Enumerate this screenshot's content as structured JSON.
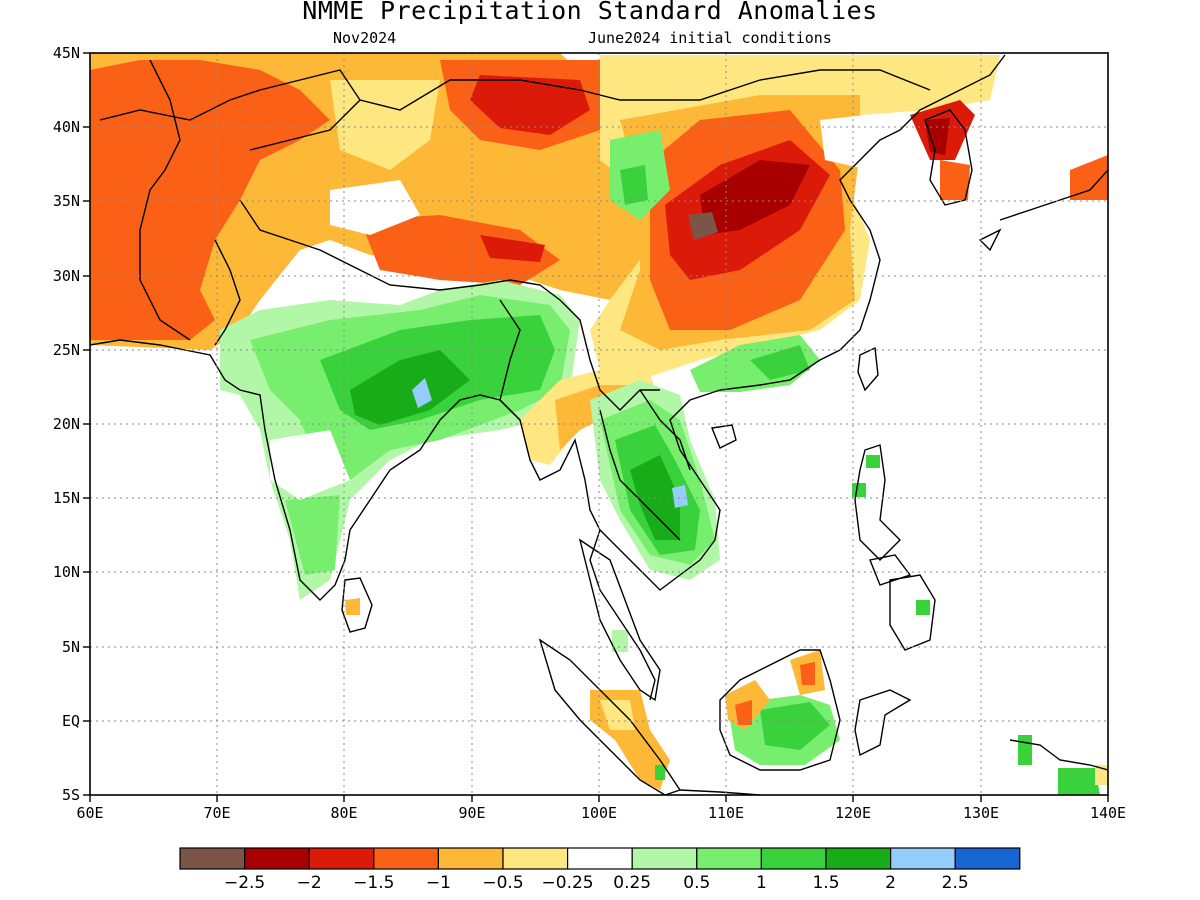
{
  "title": "NMME Precipitation Standard Anomalies",
  "subtitle_left": "Nov2024",
  "subtitle_right": "June2024 initial conditions",
  "map": {
    "lon_ticks": [
      "60E",
      "70E",
      "80E",
      "90E",
      "100E",
      "110E",
      "120E",
      "130E",
      "140E"
    ],
    "lat_ticks": [
      "45N",
      "40N",
      "35N",
      "30N",
      "25N",
      "20N",
      "15N",
      "10N",
      "5N",
      "EQ",
      "5S"
    ],
    "lon_range": [
      60,
      140
    ],
    "lat_range": [
      -5,
      45
    ],
    "grid": true
  },
  "colorbar": {
    "colors": [
      "#7a5548",
      "#a80000",
      "#dc1a0a",
      "#fa6016",
      "#fdb838",
      "#fee681",
      "#ffffff",
      "#b2f7a8",
      "#78ee6e",
      "#3ad23c",
      "#18ad18",
      "#95cdfa",
      "#1665d2"
    ],
    "labels": [
      "−2.5",
      "−2",
      "−1.5",
      "−1",
      "−0.5",
      "−0.25",
      "0.25",
      "0.5",
      "1",
      "1.5",
      "2",
      "2.5"
    ]
  }
}
